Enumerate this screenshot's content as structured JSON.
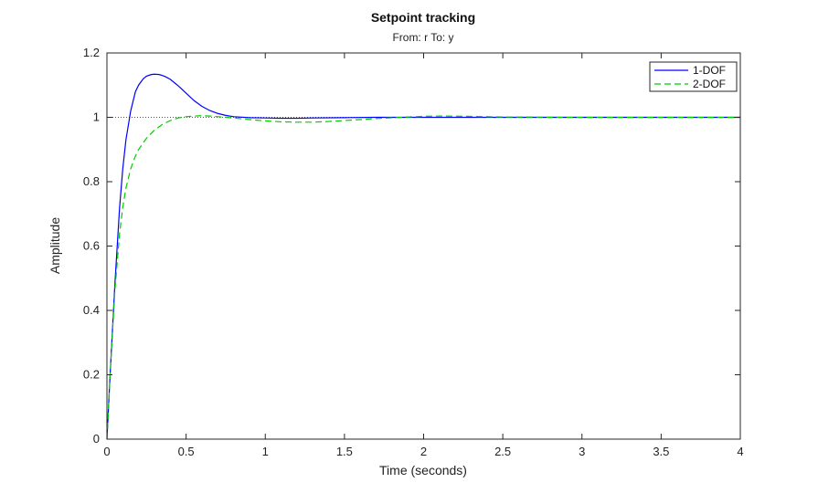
{
  "chart_data": {
    "type": "line",
    "title": "Setpoint tracking",
    "subtitle": "From: r  To: y",
    "xlabel": "Time (seconds)",
    "ylabel": "Amplitude",
    "xlim": [
      0,
      4
    ],
    "ylim": [
      0,
      1.2
    ],
    "xticks": [
      0,
      0.5,
      1,
      1.5,
      2,
      2.5,
      3,
      3.5,
      4
    ],
    "xtick_labels": [
      "0",
      "0.5",
      "1",
      "1.5",
      "2",
      "2.5",
      "3",
      "3.5",
      "4"
    ],
    "yticks": [
      0,
      0.2,
      0.4,
      0.6,
      0.8,
      1,
      1.2
    ],
    "ytick_labels": [
      "0",
      "0.2",
      "0.4",
      "0.6",
      "0.8",
      "1",
      "1.2"
    ],
    "grid": false,
    "legend_position": "top-right",
    "reference_line": {
      "y": 1,
      "style": "dotted",
      "color": "#555555"
    },
    "series": [
      {
        "name": "1-DOF",
        "color": "#0000ff",
        "dash": "solid",
        "x": [
          0,
          0.02,
          0.05,
          0.08,
          0.1,
          0.12,
          0.15,
          0.18,
          0.2,
          0.23,
          0.25,
          0.28,
          0.3,
          0.33,
          0.35,
          0.37,
          0.4,
          0.43,
          0.45,
          0.5,
          0.55,
          0.6,
          0.65,
          0.7,
          0.75,
          0.8,
          0.9,
          1.0,
          1.1,
          1.2,
          1.3,
          1.5,
          1.7,
          2.0,
          2.5,
          3.0,
          3.5,
          4.0
        ],
        "y": [
          0,
          0.2,
          0.48,
          0.72,
          0.84,
          0.93,
          1.02,
          1.08,
          1.1,
          1.12,
          1.128,
          1.133,
          1.134,
          1.133,
          1.13,
          1.126,
          1.118,
          1.106,
          1.098,
          1.075,
          1.052,
          1.034,
          1.021,
          1.012,
          1.006,
          1.002,
          0.999,
          0.998,
          0.997,
          0.997,
          0.998,
          0.999,
          1.0,
          1.0,
          1.0,
          1.0,
          1.0,
          1.0
        ]
      },
      {
        "name": "2-DOF",
        "color": "#00cc00",
        "dash": "dashed",
        "x": [
          0,
          0.02,
          0.05,
          0.08,
          0.1,
          0.12,
          0.15,
          0.18,
          0.2,
          0.25,
          0.3,
          0.35,
          0.4,
          0.45,
          0.5,
          0.55,
          0.6,
          0.65,
          0.7,
          0.8,
          0.9,
          1.0,
          1.1,
          1.2,
          1.3,
          1.4,
          1.5,
          1.7,
          1.9,
          2.0,
          2.1,
          2.3,
          2.5,
          3.0,
          3.5,
          4.0
        ],
        "y": [
          0,
          0.2,
          0.46,
          0.64,
          0.72,
          0.78,
          0.84,
          0.88,
          0.9,
          0.935,
          0.96,
          0.978,
          0.99,
          0.998,
          1.002,
          1.004,
          1.005,
          1.004,
          1.002,
          0.998,
          0.993,
          0.989,
          0.986,
          0.985,
          0.985,
          0.987,
          0.99,
          0.996,
          1.001,
          1.003,
          1.004,
          1.003,
          1.001,
          1.0,
          1.0,
          1.0
        ]
      }
    ]
  }
}
